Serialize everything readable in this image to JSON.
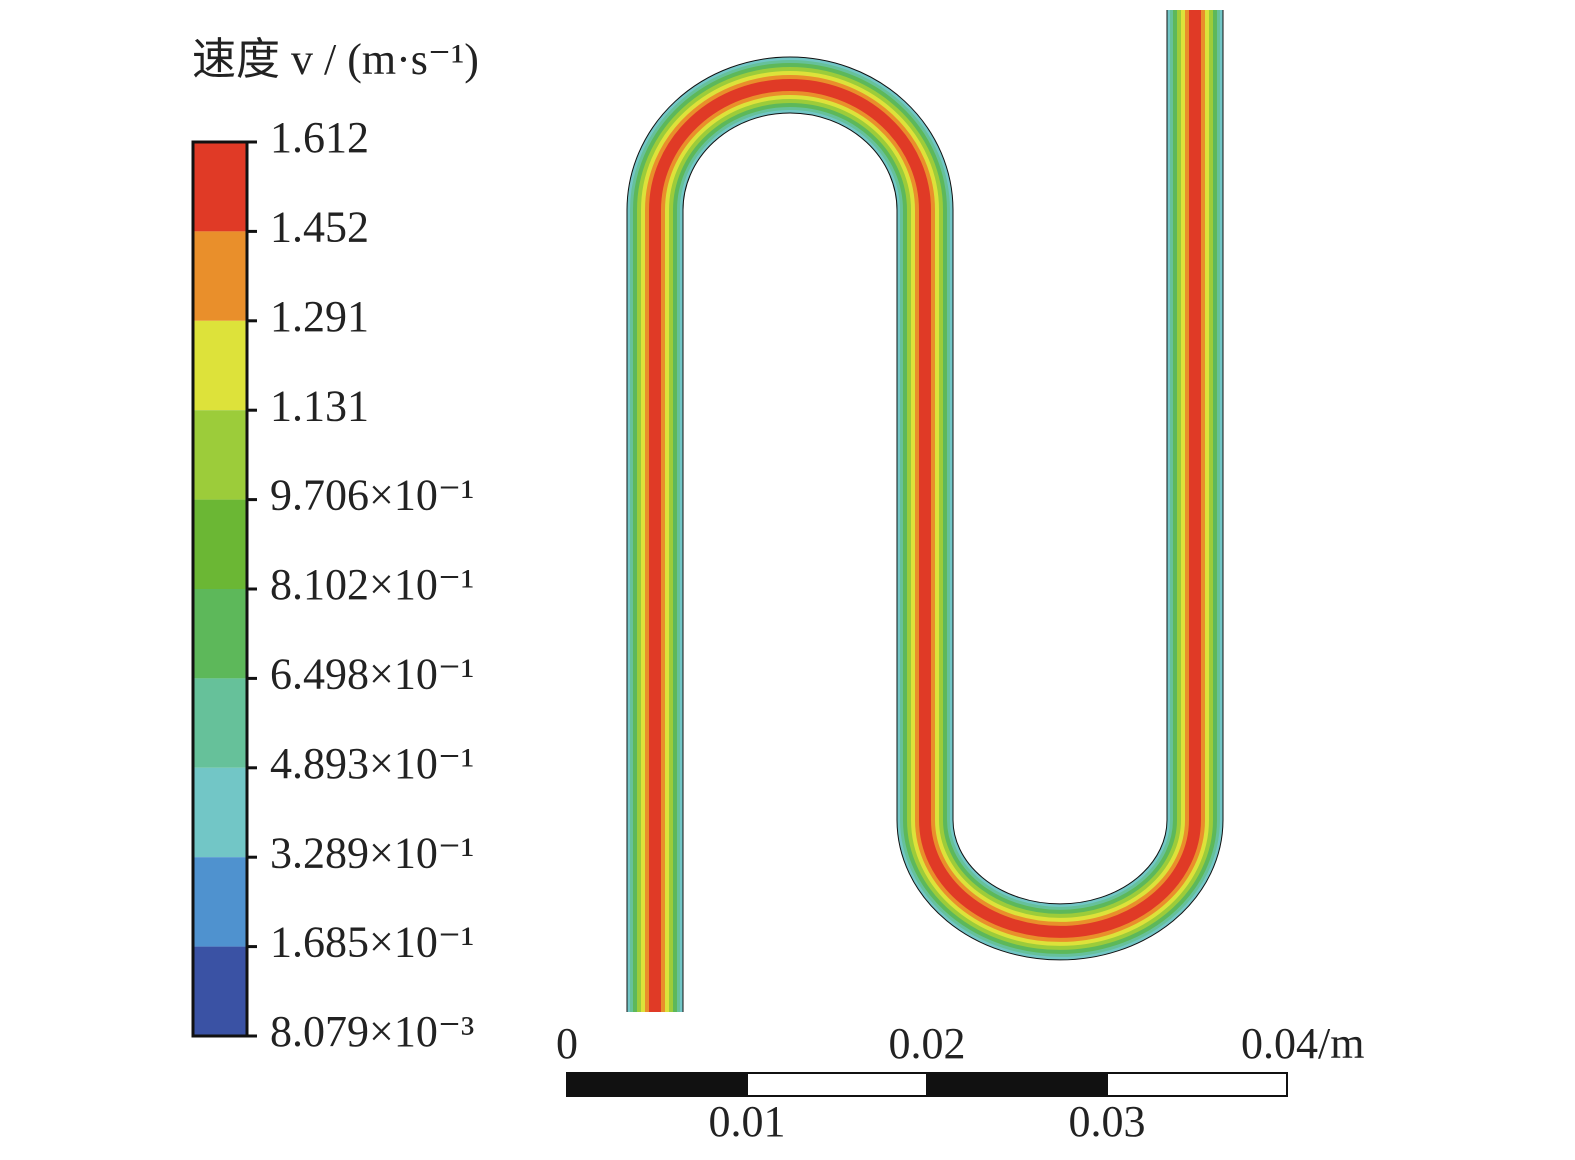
{
  "colorbar": {
    "title": "速度 v / (m·s⁻¹)",
    "ticks": [
      "1.612",
      "1.452",
      "1.291",
      "1.131",
      "9.706×10⁻¹",
      "8.102×10⁻¹",
      "6.498×10⁻¹",
      "4.893×10⁻¹",
      "3.289×10⁻¹",
      "1.685×10⁻¹",
      "8.079×10⁻³"
    ],
    "colors": [
      "#e03a26",
      "#e98f2b",
      "#dde23a",
      "#9ccc3a",
      "#6bb734",
      "#5db85a",
      "#66c19a",
      "#72c6c6",
      "#4f92cf",
      "#3a52a4"
    ]
  },
  "scale_bar": {
    "labels": [
      "0",
      "0.01",
      "0.02",
      "0.03",
      "0.04/m"
    ]
  }
}
